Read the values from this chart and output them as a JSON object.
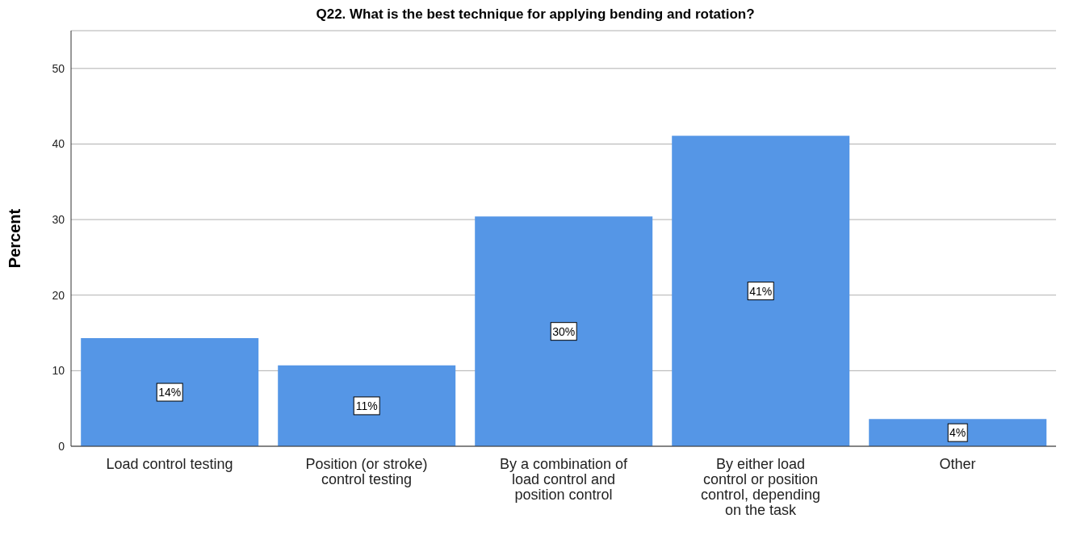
{
  "chart_data": {
    "type": "bar",
    "title": "Q22. What is the best technique for applying bending and rotation?",
    "ylabel": "Percent",
    "categories": [
      "Load control testing",
      "Position (or stroke) control testing",
      "By a combination of load control and position control",
      "By either load control or position control, depending on the task",
      "Other"
    ],
    "values": [
      14.3,
      10.7,
      30.4,
      41.1,
      3.6
    ],
    "value_labels": [
      "14%",
      "11%",
      "30%",
      "41%",
      "4%"
    ],
    "color": "#5596e6",
    "ylim": [
      0,
      55
    ],
    "yticks": [
      0,
      10,
      20,
      30,
      40,
      50
    ],
    "grid": "y"
  }
}
